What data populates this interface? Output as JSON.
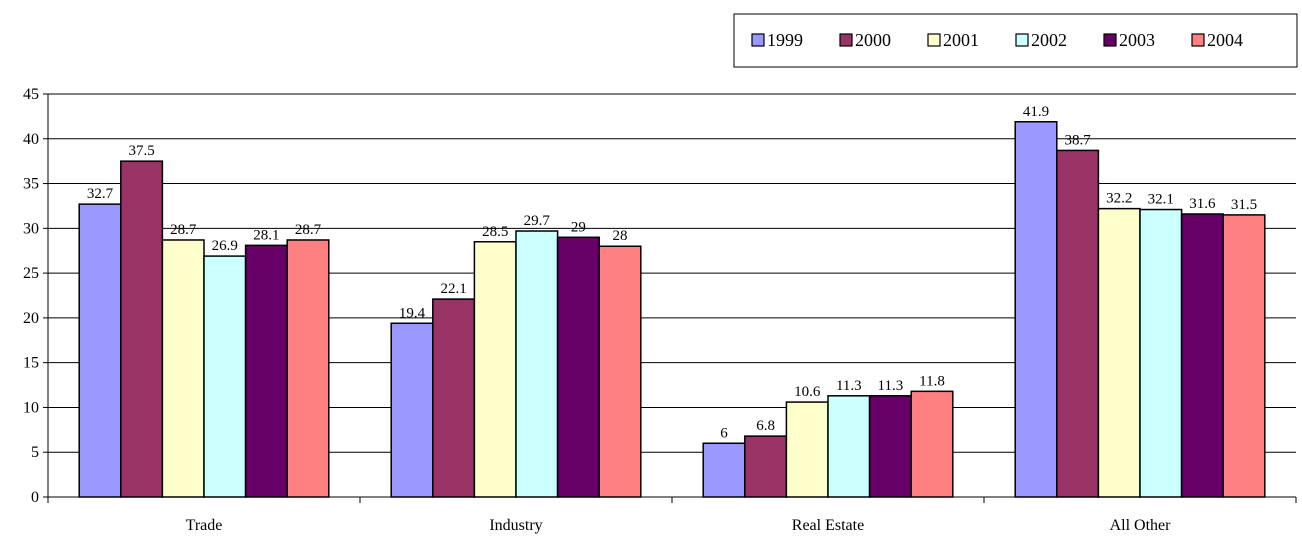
{
  "chart_data": {
    "type": "bar",
    "categories": [
      "Trade",
      "Industry",
      "Real Estate",
      "All Other"
    ],
    "series": [
      {
        "name": "1999",
        "color": "#9999ff",
        "values": [
          32.7,
          19.4,
          6,
          41.9
        ]
      },
      {
        "name": "2000",
        "color": "#993366",
        "values": [
          37.5,
          22.1,
          6.8,
          38.7
        ]
      },
      {
        "name": "2001",
        "color": "#ffffcc",
        "values": [
          28.7,
          28.5,
          10.6,
          32.2
        ]
      },
      {
        "name": "2002",
        "color": "#ccffff",
        "values": [
          26.9,
          29.7,
          11.3,
          32.1
        ]
      },
      {
        "name": "2003",
        "color": "#660066",
        "values": [
          28.1,
          29,
          11.3,
          31.6
        ]
      },
      {
        "name": "2004",
        "color": "#ff8080",
        "values": [
          28.7,
          28,
          11.8,
          31.5
        ]
      }
    ],
    "ylim": [
      0,
      45
    ],
    "yticks": [
      0,
      5,
      10,
      15,
      20,
      25,
      30,
      35,
      40,
      45
    ],
    "grid": true,
    "legend_position": "top-right"
  }
}
